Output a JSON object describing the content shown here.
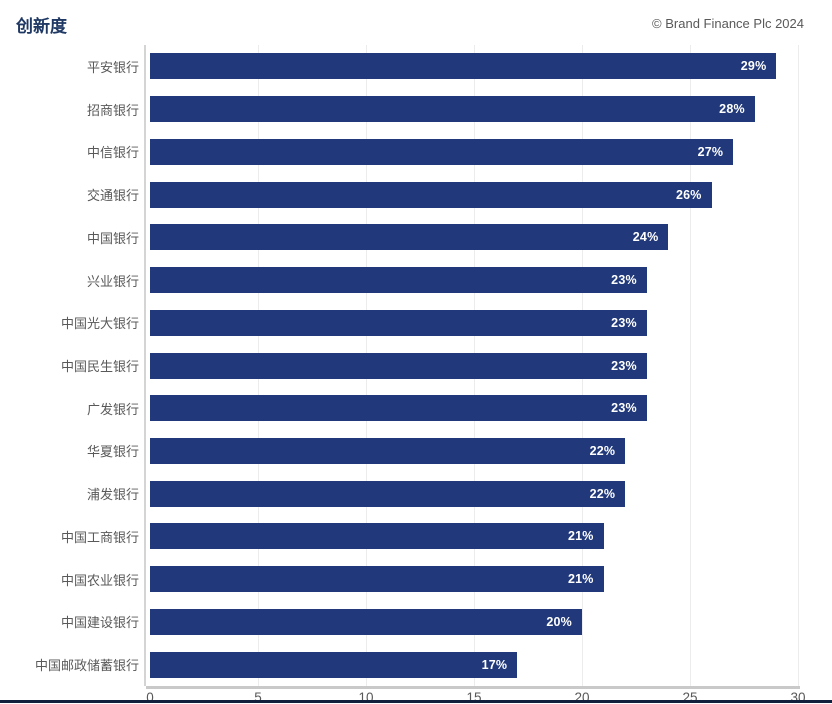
{
  "header": {
    "title": "创新度",
    "copyright": "© Brand Finance Plc 2024"
  },
  "chart_data": {
    "type": "bar",
    "orientation": "horizontal",
    "title": "创新度",
    "xlabel": "",
    "ylabel": "",
    "xlim": [
      0,
      30
    ],
    "x_ticks": [
      0,
      5,
      10,
      15,
      20,
      25,
      30
    ],
    "grid": true,
    "categories": [
      "平安银行",
      "招商银行",
      "中信银行",
      "交通银行",
      "中国银行",
      "兴业银行",
      "中国光大银行",
      "中国民生银行",
      "广发银行",
      "华夏银行",
      "浦发银行",
      "中国工商银行",
      "中国农业银行",
      "中国建设银行",
      "中国邮政储蓄银行"
    ],
    "values": [
      29,
      28,
      27,
      26,
      24,
      23,
      23,
      23,
      23,
      22,
      22,
      21,
      21,
      20,
      17
    ],
    "value_labels": [
      "29%",
      "28%",
      "27%",
      "26%",
      "24%",
      "23%",
      "23%",
      "23%",
      "23%",
      "22%",
      "22%",
      "21%",
      "21%",
      "20%",
      "17%"
    ],
    "colors": {
      "bar": "#21397b",
      "value_label": "#ffffff",
      "category_label": "#595959",
      "tick_label": "#595959",
      "gridline": "#ececec",
      "axis_line": "#c9c9c9",
      "title": "#1f3864",
      "bottom_strip": "#121f3d"
    }
  }
}
